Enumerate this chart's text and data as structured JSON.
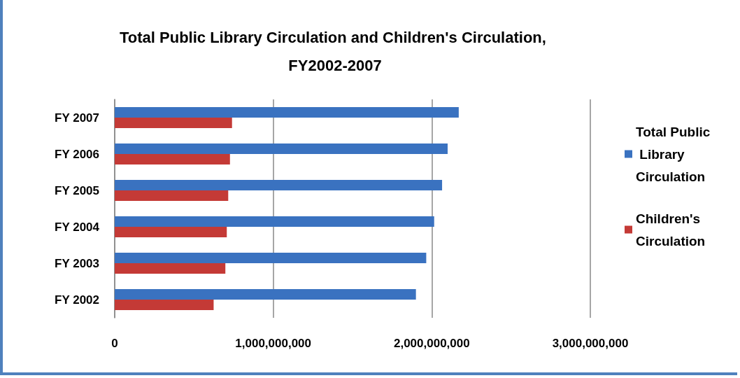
{
  "chart_data": {
    "type": "bar",
    "orientation": "horizontal",
    "title": "Total Public Library Circulation and Children's Circulation, FY2002-2007",
    "categories": [
      "FY 2007",
      "FY 2006",
      "FY 2005",
      "FY 2004",
      "FY 2003",
      "FY 2002"
    ],
    "series": [
      {
        "name": "Total Public Library Circulation",
        "color": "#3a72c0",
        "values": [
          2170000000,
          2100000000,
          2065000000,
          2015000000,
          1965000000,
          1900000000
        ]
      },
      {
        "name": "Children's Circulation",
        "color": "#c43a36",
        "values": [
          740000000,
          727000000,
          716000000,
          707000000,
          698000000,
          624000000
        ]
      }
    ],
    "xlim": [
      0,
      3000000000
    ],
    "xticks": [
      0,
      {
        "value": 1000000000,
        "label": "1,000,000,000"
      },
      {
        "value": 2000000000,
        "label": "2,000,000,000"
      },
      {
        "value": 3000000000,
        "label": "3,000,000,000"
      }
    ],
    "grid": "x",
    "legend": "right"
  }
}
